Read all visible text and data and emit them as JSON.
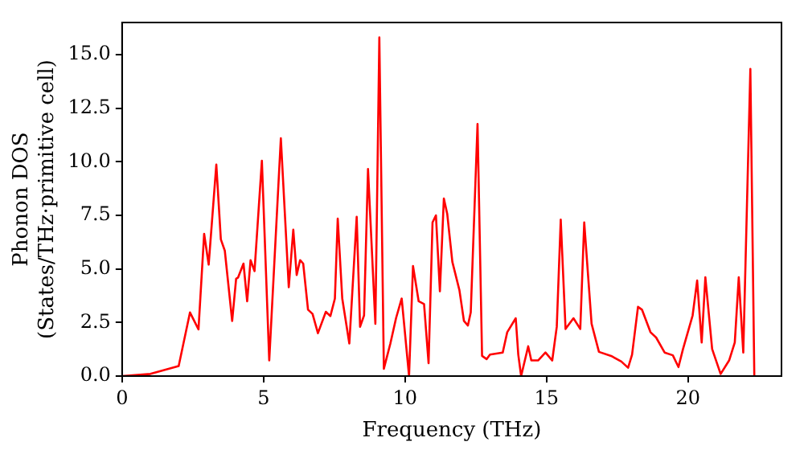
{
  "chart_data": {
    "type": "line",
    "xlabel": "Frequency (THz)",
    "ylabel": "Phonon DOS\n(States/THz·primitive cell)",
    "xlim": [
      0,
      23.3
    ],
    "xticks": [
      0,
      5,
      10,
      15,
      20
    ],
    "ylim": [
      0,
      16.5
    ],
    "yticks": [
      {
        "value": 0,
        "label": "0.0"
      },
      {
        "value": 2.5,
        "label": "2.5"
      },
      {
        "value": 5,
        "label": "5.0"
      },
      {
        "value": 7.5,
        "label": "7.5"
      },
      {
        "value": 10,
        "label": "10.0"
      },
      {
        "value": 12.5,
        "label": "12.5"
      },
      {
        "value": 15,
        "label": "15.0"
      }
    ],
    "grid": false,
    "legend": false,
    "marker": "none",
    "line_style": "solid",
    "series": [
      {
        "color": "#ff0000",
        "x": [
          0,
          1,
          2.0,
          2.4,
          2.7,
          2.9,
          3.06,
          3.33,
          3.49,
          3.63,
          3.89,
          4.03,
          4.1,
          4.29,
          4.42,
          4.54,
          4.68,
          4.94,
          5.2,
          5.61,
          5.89,
          6.05,
          6.17,
          6.29,
          6.4,
          6.57,
          6.73,
          6.92,
          7.2,
          7.36,
          7.52,
          7.62,
          7.78,
          8.03,
          8.29,
          8.41,
          8.55,
          8.69,
          8.95,
          9.09,
          9.25,
          9.48,
          9.68,
          9.88,
          10.14,
          10.28,
          10.48,
          10.67,
          10.83,
          10.97,
          11.09,
          11.23,
          11.37,
          11.49,
          11.67,
          11.92,
          12.08,
          12.22,
          12.32,
          12.56,
          12.72,
          12.88,
          13.0,
          13.45,
          13.61,
          13.91,
          14.0,
          14.1,
          14.35,
          14.46,
          14.7,
          14.96,
          15.2,
          15.36,
          15.5,
          15.67,
          15.95,
          16.19,
          16.33,
          16.59,
          16.85,
          17.28,
          17.64,
          17.88,
          18.02,
          18.23,
          18.37,
          18.67,
          18.87,
          19.17,
          19.46,
          19.66,
          19.82,
          20.16,
          20.32,
          20.48,
          20.61,
          20.85,
          21.15,
          21.45,
          21.65,
          21.79,
          21.95,
          22.2,
          22.34
        ],
        "values": [
          0,
          0.1,
          0.47,
          2.97,
          2.18,
          6.64,
          5.2,
          9.87,
          6.38,
          5.85,
          2.57,
          4.54,
          4.6,
          5.25,
          3.49,
          5.41,
          4.9,
          10.05,
          0.73,
          11.1,
          4.15,
          6.83,
          4.72,
          5.41,
          5.25,
          3.1,
          2.9,
          2.0,
          3.0,
          2.8,
          3.62,
          7.35,
          3.62,
          1.52,
          7.43,
          2.3,
          2.83,
          9.66,
          2.44,
          15.8,
          0.34,
          1.52,
          2.7,
          3.62,
          0,
          5.14,
          3.49,
          3.36,
          0.6,
          7.17,
          7.5,
          3.96,
          8.29,
          7.56,
          5.33,
          4.01,
          2.57,
          2.36,
          2.97,
          11.76,
          0.94,
          0.79,
          1.0,
          1.1,
          2.05,
          2.7,
          1.0,
          0,
          1.39,
          0.73,
          0.73,
          1.1,
          0.73,
          2.3,
          7.3,
          2.2,
          2.7,
          2.2,
          7.17,
          2.44,
          1.13,
          0.94,
          0.68,
          0.39,
          1.0,
          3.23,
          3.1,
          2.05,
          1.8,
          1.1,
          0.97,
          0.42,
          1.26,
          2.83,
          4.46,
          1.57,
          4.61,
          1.26,
          0.1,
          0.73,
          1.57,
          4.61,
          1.1,
          14.33,
          0
        ]
      }
    ]
  }
}
